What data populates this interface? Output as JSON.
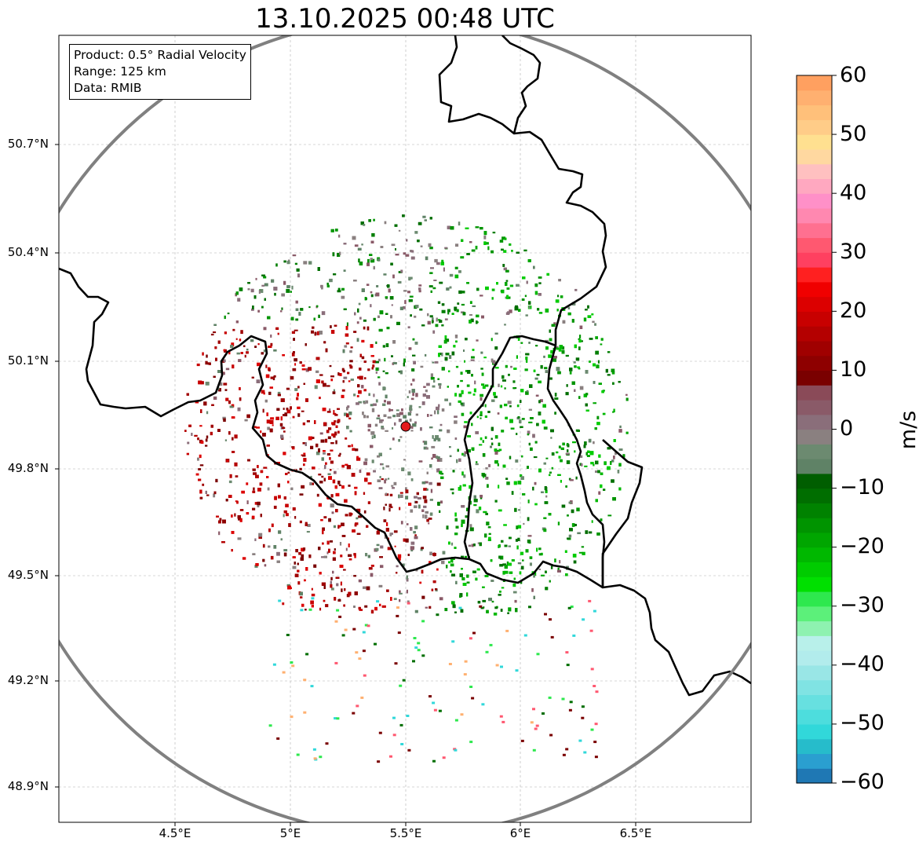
{
  "title": "13.10.2025 00:48 UTC",
  "info": {
    "product": "Product: 0.5° Radial Velocity",
    "range": "Range: 125 km",
    "data": "Data: RMIB"
  },
  "map": {
    "lat_ticks": [
      "50.7°N",
      "50.4°N",
      "50.1°N",
      "49.8°N",
      "49.5°N",
      "49.2°N",
      "48.9°N"
    ],
    "lon_ticks": [
      "4.5°E",
      "5°E",
      "5.5°E",
      "6°E",
      "6.5°E"
    ],
    "radar_site_color": "#e31a1c",
    "range_ring_color": "#808080",
    "border_color": "#000000"
  },
  "colorbar": {
    "unit": "m/s",
    "min": -60,
    "max": 60,
    "tick_labels": [
      "60",
      "50",
      "40",
      "30",
      "20",
      "10",
      "0",
      "−10",
      "−20",
      "−30",
      "−40",
      "−50",
      "−60"
    ],
    "colors": [
      "#1f78b4",
      "#2a9fd0",
      "#26bccb",
      "#31d8da",
      "#4ddddd",
      "#67e0e0",
      "#80e3e3",
      "#99e6e6",
      "#b2ecec",
      "#b8f0ea",
      "#8ef2b0",
      "#5cf07a",
      "#2ee84e",
      "#00e000",
      "#00cc00",
      "#00b800",
      "#00a600",
      "#009400",
      "#008200",
      "#006e00",
      "#005e00",
      "#5f8266",
      "#6c8a70",
      "#8a8080",
      "#8a6e7a",
      "#8a5a68",
      "#8a4a58",
      "#7a0000",
      "#8e0000",
      "#a00000",
      "#b40000",
      "#c80000",
      "#dc0000",
      "#f00000",
      "#ff2020",
      "#ff4060",
      "#ff5870",
      "#ff7090",
      "#ff88b0",
      "#ff90c8",
      "#ffa8c0",
      "#ffc0c0",
      "#ffd8a0",
      "#ffe090",
      "#ffcc88",
      "#ffc07a",
      "#ffb070",
      "#ffa060"
    ]
  }
}
